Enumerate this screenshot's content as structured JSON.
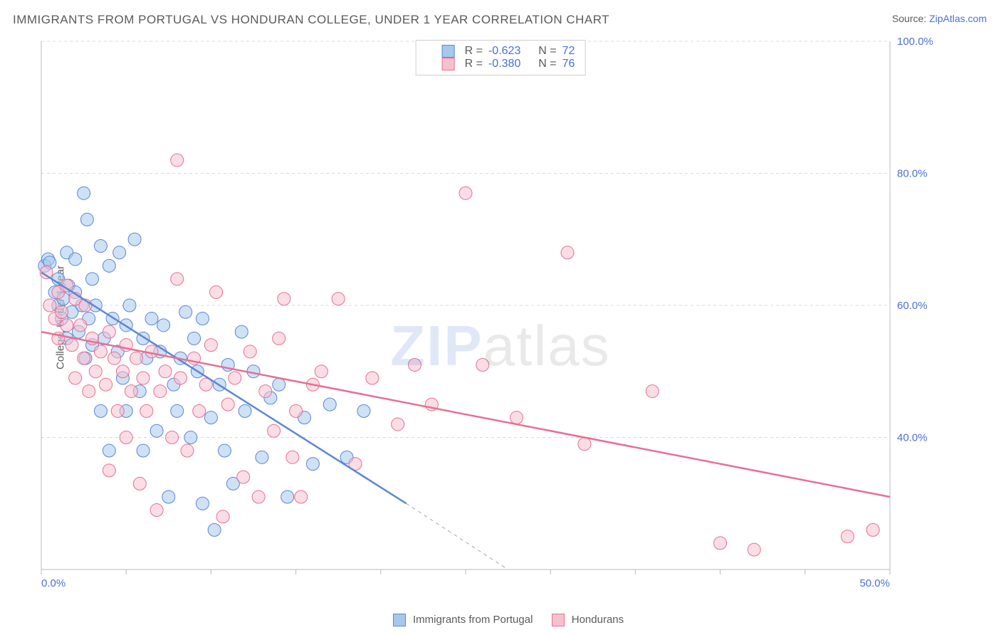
{
  "title": "IMMIGRANTS FROM PORTUGAL VS HONDURAN COLLEGE, UNDER 1 YEAR CORRELATION CHART",
  "source_prefix": "Source: ",
  "source_link": "ZipAtlas.com",
  "ylabel": "College, Under 1 year",
  "watermark": {
    "bold": "ZIP",
    "rest": "atlas"
  },
  "chart": {
    "type": "scatter",
    "xlim": [
      0,
      50
    ],
    "ylim": [
      20,
      100
    ],
    "xtick_step": 5,
    "xtick_labels": {
      "0": "0.0%",
      "50": "50.0%"
    },
    "ytick_step": 20,
    "ytick_labels": {
      "40": "40.0%",
      "60": "60.0%",
      "80": "80.0%",
      "100": "100.0%"
    },
    "background": "#ffffff",
    "grid_color": "#d9d9d9",
    "grid_dash": "4,4",
    "axis_color": "#b8b8b8",
    "tick_label_color": "#4a6fd8",
    "tick_label_fontsize": 15,
    "marker_radius": 9,
    "marker_opacity": 0.55,
    "series": [
      {
        "name": "Immigrants from Portugal",
        "fill": "#a6c8ec",
        "stroke": "#5b86d6",
        "R": "-0.623",
        "N": "72",
        "line": {
          "x1": 0,
          "y1": 65,
          "x2": 21.5,
          "y2": 30,
          "width": 2.5
        },
        "line_ext": {
          "x1": 21.5,
          "y1": 30,
          "x2": 27.5,
          "y2": 20,
          "dash": "5,5",
          "color": "#9aa7b5",
          "width": 1
        },
        "points": [
          [
            0.2,
            66
          ],
          [
            0.4,
            67
          ],
          [
            0.5,
            66.5
          ],
          [
            0.8,
            62
          ],
          [
            1.0,
            60
          ],
          [
            1.0,
            64
          ],
          [
            1.2,
            58
          ],
          [
            1.3,
            61
          ],
          [
            1.5,
            68
          ],
          [
            1.5,
            55
          ],
          [
            1.6,
            63
          ],
          [
            1.8,
            59
          ],
          [
            2.0,
            62
          ],
          [
            2.0,
            67
          ],
          [
            2.2,
            56
          ],
          [
            2.4,
            60
          ],
          [
            2.5,
            77
          ],
          [
            2.6,
            52
          ],
          [
            2.7,
            73
          ],
          [
            2.8,
            58
          ],
          [
            3.0,
            64
          ],
          [
            3.0,
            54
          ],
          [
            3.2,
            60
          ],
          [
            3.5,
            44
          ],
          [
            3.5,
            69
          ],
          [
            3.7,
            55
          ],
          [
            4.0,
            66
          ],
          [
            4.0,
            38
          ],
          [
            4.2,
            58
          ],
          [
            4.5,
            53
          ],
          [
            4.6,
            68
          ],
          [
            4.8,
            49
          ],
          [
            5.0,
            57
          ],
          [
            5.0,
            44
          ],
          [
            5.2,
            60
          ],
          [
            5.5,
            70
          ],
          [
            5.8,
            47
          ],
          [
            6.0,
            55
          ],
          [
            6.0,
            38
          ],
          [
            6.2,
            52
          ],
          [
            6.5,
            58
          ],
          [
            6.8,
            41
          ],
          [
            7.0,
            53
          ],
          [
            7.2,
            57
          ],
          [
            7.5,
            31
          ],
          [
            7.8,
            48
          ],
          [
            8.0,
            44
          ],
          [
            8.2,
            52
          ],
          [
            8.5,
            59
          ],
          [
            8.8,
            40
          ],
          [
            9.0,
            55
          ],
          [
            9.2,
            50
          ],
          [
            9.5,
            30
          ],
          [
            9.5,
            58
          ],
          [
            10.0,
            43
          ],
          [
            10.2,
            26
          ],
          [
            10.5,
            48
          ],
          [
            10.8,
            38
          ],
          [
            11.0,
            51
          ],
          [
            11.3,
            33
          ],
          [
            11.8,
            56
          ],
          [
            12.0,
            44
          ],
          [
            12.5,
            50
          ],
          [
            13.0,
            37
          ],
          [
            13.5,
            46
          ],
          [
            14.0,
            48
          ],
          [
            14.5,
            31
          ],
          [
            15.5,
            43
          ],
          [
            16.0,
            36
          ],
          [
            17.0,
            45
          ],
          [
            18.0,
            37
          ],
          [
            19.0,
            44
          ]
        ]
      },
      {
        "name": "Hondurans",
        "fill": "#f6c1cf",
        "stroke": "#e86f94",
        "R": "-0.380",
        "N": "76",
        "line": {
          "x1": 0,
          "y1": 56,
          "x2": 50,
          "y2": 31,
          "width": 2.5
        },
        "points": [
          [
            0.3,
            65
          ],
          [
            0.5,
            60
          ],
          [
            0.8,
            58
          ],
          [
            1.0,
            62
          ],
          [
            1.0,
            55
          ],
          [
            1.2,
            59
          ],
          [
            1.5,
            57
          ],
          [
            1.5,
            63
          ],
          [
            1.8,
            54
          ],
          [
            2.0,
            61
          ],
          [
            2.0,
            49
          ],
          [
            2.3,
            57
          ],
          [
            2.5,
            52
          ],
          [
            2.6,
            60
          ],
          [
            2.8,
            47
          ],
          [
            3.0,
            55
          ],
          [
            3.2,
            50
          ],
          [
            3.5,
            53
          ],
          [
            3.8,
            48
          ],
          [
            4.0,
            56
          ],
          [
            4.0,
            35
          ],
          [
            4.3,
            52
          ],
          [
            4.5,
            44
          ],
          [
            4.8,
            50
          ],
          [
            5.0,
            54
          ],
          [
            5.0,
            40
          ],
          [
            5.3,
            47
          ],
          [
            5.6,
            52
          ],
          [
            5.8,
            33
          ],
          [
            6.0,
            49
          ],
          [
            6.2,
            44
          ],
          [
            6.5,
            53
          ],
          [
            6.8,
            29
          ],
          [
            7.0,
            47
          ],
          [
            7.3,
            50
          ],
          [
            7.7,
            40
          ],
          [
            8.0,
            64
          ],
          [
            8.0,
            82
          ],
          [
            8.2,
            49
          ],
          [
            8.6,
            38
          ],
          [
            9.0,
            52
          ],
          [
            9.3,
            44
          ],
          [
            9.7,
            48
          ],
          [
            10.0,
            54
          ],
          [
            10.3,
            62
          ],
          [
            10.7,
            28
          ],
          [
            11.0,
            45
          ],
          [
            11.4,
            49
          ],
          [
            11.9,
            34
          ],
          [
            12.3,
            53
          ],
          [
            12.8,
            31
          ],
          [
            13.2,
            47
          ],
          [
            13.7,
            41
          ],
          [
            14.0,
            55
          ],
          [
            14.3,
            61
          ],
          [
            14.8,
            37
          ],
          [
            15.3,
            31
          ],
          [
            16.0,
            48
          ],
          [
            16.5,
            50
          ],
          [
            17.5,
            61
          ],
          [
            18.5,
            36
          ],
          [
            19.5,
            49
          ],
          [
            21.0,
            42
          ],
          [
            22.0,
            51
          ],
          [
            25.0,
            77
          ],
          [
            26.0,
            51
          ],
          [
            28.0,
            43
          ],
          [
            31.0,
            68
          ],
          [
            32.0,
            39
          ],
          [
            36.0,
            47
          ],
          [
            40.0,
            24
          ],
          [
            42.0,
            23
          ],
          [
            47.5,
            25
          ],
          [
            49.0,
            26
          ],
          [
            15.0,
            44
          ],
          [
            23.0,
            45
          ]
        ]
      }
    ],
    "legend_bottom": [
      {
        "swatch_fill": "#a6c8ec",
        "swatch_stroke": "#5b86d6",
        "label": "Immigrants from Portugal"
      },
      {
        "swatch_fill": "#f6c1cf",
        "swatch_stroke": "#e86f94",
        "label": "Hondurans"
      }
    ],
    "legend_top": {
      "r_label": "R =",
      "n_label": "N ="
    }
  }
}
